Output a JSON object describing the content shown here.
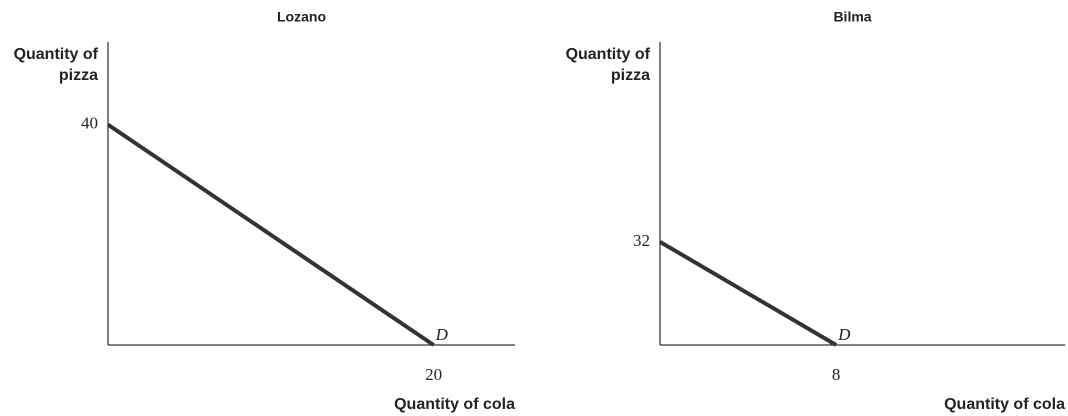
{
  "chart_data": [
    {
      "type": "line",
      "title": "Lozano",
      "ylabel": "Quantity of pizza",
      "xlabel": "Quantity of cola",
      "x": [
        0,
        20
      ],
      "values": [
        40,
        0
      ],
      "color": "#333333",
      "annotation": "D",
      "xlim": [
        0,
        25
      ],
      "ylim": [
        0,
        55
      ],
      "xticks": [
        20
      ],
      "yticks": [
        40
      ]
    },
    {
      "type": "line",
      "title": "Bilma",
      "ylabel": "Quantity of pizza",
      "xlabel": "Quantity of cola",
      "x": [
        0,
        8
      ],
      "values": [
        32,
        0
      ],
      "color": "#333333",
      "annotation": "D",
      "xlim": [
        0,
        18.4
      ],
      "ylim": [
        0,
        94
      ],
      "xticks": [
        8
      ],
      "yticks": [
        32
      ]
    }
  ]
}
